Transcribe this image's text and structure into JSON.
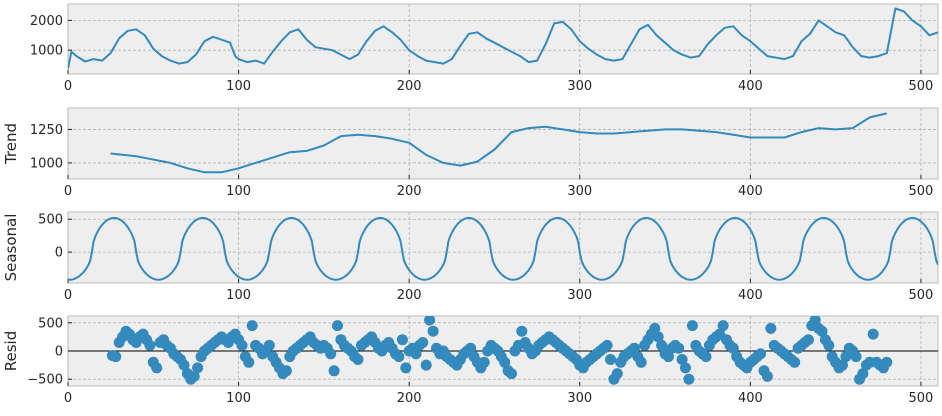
{
  "chart_data": [
    {
      "type": "line",
      "panel": "observed",
      "ylabel": "",
      "xlim": [
        0,
        510
      ],
      "ylim": [
        200,
        2550
      ],
      "xticks": [
        0,
        100,
        200,
        300,
        400,
        500
      ],
      "yticks": [
        1000,
        2000
      ],
      "xtick_labels": [
        "0",
        "100",
        "200",
        "300",
        "400",
        "500"
      ],
      "ytick_labels": [
        "1000",
        "2000"
      ],
      "grid": true,
      "x": [
        0,
        2,
        5,
        10,
        15,
        20,
        25,
        30,
        35,
        40,
        45,
        50,
        55,
        60,
        65,
        70,
        75,
        80,
        85,
        90,
        95,
        98,
        100,
        105,
        110,
        115,
        120,
        125,
        130,
        135,
        140,
        145,
        150,
        155,
        160,
        165,
        170,
        175,
        180,
        185,
        190,
        195,
        200,
        205,
        210,
        215,
        220,
        225,
        230,
        235,
        240,
        245,
        250,
        255,
        260,
        265,
        270,
        275,
        280,
        285,
        290,
        295,
        300,
        305,
        310,
        315,
        320,
        325,
        330,
        335,
        340,
        345,
        350,
        355,
        360,
        365,
        370,
        375,
        380,
        385,
        390,
        395,
        400,
        405,
        410,
        415,
        420,
        425,
        430,
        435,
        440,
        445,
        450,
        455,
        460,
        465,
        470,
        475,
        480,
        485,
        490,
        495,
        500,
        505,
        510
      ],
      "values": [
        380,
        950,
        800,
        620,
        700,
        650,
        900,
        1400,
        1650,
        1700,
        1500,
        1050,
        800,
        650,
        550,
        600,
        850,
        1300,
        1450,
        1350,
        1250,
        800,
        700,
        600,
        650,
        550,
        950,
        1300,
        1600,
        1700,
        1350,
        1100,
        1050,
        1000,
        850,
        700,
        850,
        1300,
        1650,
        1800,
        1600,
        1350,
        1000,
        800,
        650,
        600,
        550,
        700,
        1150,
        1550,
        1600,
        1400,
        1250,
        1100,
        950,
        800,
        600,
        650,
        1200,
        1900,
        1950,
        1700,
        1300,
        1050,
        850,
        700,
        650,
        700,
        1200,
        1700,
        1850,
        1500,
        1250,
        1000,
        850,
        750,
        800,
        1200,
        1500,
        1750,
        1800,
        1500,
        1300,
        1050,
        800,
        750,
        700,
        800,
        1300,
        1550,
        2000,
        1800,
        1600,
        1500,
        1100,
        800,
        750,
        800,
        900,
        2400,
        2300,
        2000,
        1800,
        1500,
        1600
      ]
    },
    {
      "type": "line",
      "panel": "trend",
      "ylabel": "Trend",
      "xlim": [
        0,
        510
      ],
      "ylim": [
        880,
        1410
      ],
      "xticks": [
        0,
        100,
        200,
        300,
        400,
        500
      ],
      "yticks": [
        1000,
        1250
      ],
      "xtick_labels": [
        "0",
        "100",
        "200",
        "300",
        "400",
        "500"
      ],
      "ytick_labels": [
        "1000",
        "1250"
      ],
      "grid": true,
      "x": [
        25,
        40,
        60,
        70,
        80,
        90,
        100,
        110,
        120,
        130,
        140,
        150,
        160,
        170,
        180,
        190,
        200,
        210,
        220,
        230,
        240,
        250,
        260,
        270,
        280,
        290,
        300,
        310,
        320,
        330,
        340,
        350,
        360,
        370,
        380,
        390,
        400,
        410,
        420,
        430,
        440,
        450,
        460,
        470,
        480
      ],
      "values": [
        1070,
        1050,
        1000,
        960,
        930,
        930,
        960,
        1000,
        1040,
        1080,
        1090,
        1130,
        1200,
        1210,
        1200,
        1180,
        1150,
        1060,
        1000,
        980,
        1010,
        1100,
        1230,
        1260,
        1270,
        1250,
        1230,
        1220,
        1220,
        1230,
        1240,
        1250,
        1250,
        1240,
        1230,
        1210,
        1190,
        1190,
        1190,
        1230,
        1260,
        1250,
        1260,
        1340,
        1370
      ]
    },
    {
      "type": "line",
      "panel": "seasonal",
      "ylabel": "Seasonal",
      "xlim": [
        0,
        510
      ],
      "ylim": [
        -470,
        610
      ],
      "xticks": [
        0,
        100,
        200,
        300,
        400,
        500
      ],
      "yticks": [
        0,
        500
      ],
      "xtick_labels": [
        "0",
        "100",
        "200",
        "300",
        "400",
        "500"
      ],
      "ytick_labels": [
        "0",
        "500"
      ],
      "grid": true,
      "period": 52,
      "phase_peak": 27,
      "amplitude_pos": 520,
      "amplitude_neg": 420
    },
    {
      "type": "scatter",
      "panel": "resid",
      "ylabel": "Resid",
      "xlim": [
        0,
        510
      ],
      "ylim": [
        -620,
        620
      ],
      "xticks": [
        0,
        100,
        200,
        300,
        400,
        500
      ],
      "yticks": [
        -500,
        0,
        500
      ],
      "xtick_labels": [
        "0",
        "100",
        "200",
        "300",
        "400",
        "500"
      ],
      "ytick_labels": [
        "−500",
        "0",
        "500"
      ],
      "grid": true,
      "x": [
        26,
        28,
        30,
        32,
        34,
        36,
        38,
        40,
        42,
        44,
        46,
        48,
        50,
        52,
        54,
        56,
        58,
        60,
        62,
        64,
        66,
        68,
        70,
        72,
        74,
        76,
        78,
        80,
        82,
        84,
        86,
        88,
        90,
        92,
        94,
        96,
        98,
        100,
        102,
        104,
        106,
        108,
        110,
        112,
        114,
        116,
        118,
        120,
        122,
        124,
        126,
        128,
        130,
        132,
        134,
        136,
        138,
        140,
        142,
        144,
        146,
        148,
        150,
        152,
        154,
        156,
        158,
        160,
        162,
        164,
        166,
        168,
        170,
        172,
        174,
        176,
        178,
        180,
        182,
        184,
        186,
        188,
        190,
        192,
        194,
        196,
        198,
        200,
        202,
        204,
        206,
        208,
        210,
        212,
        214,
        216,
        218,
        220,
        222,
        224,
        226,
        228,
        230,
        232,
        234,
        236,
        238,
        240,
        242,
        244,
        246,
        248,
        250,
        252,
        254,
        256,
        258,
        260,
        262,
        264,
        266,
        268,
        270,
        272,
        274,
        276,
        278,
        280,
        282,
        284,
        286,
        288,
        290,
        292,
        294,
        296,
        298,
        300,
        302,
        304,
        306,
        308,
        310,
        312,
        314,
        316,
        318,
        320,
        322,
        324,
        326,
        328,
        330,
        332,
        334,
        336,
        338,
        340,
        342,
        344,
        346,
        348,
        350,
        352,
        354,
        356,
        358,
        360,
        362,
        364,
        366,
        368,
        370,
        372,
        374,
        376,
        378,
        380,
        382,
        384,
        386,
        388,
        390,
        392,
        394,
        396,
        398,
        400,
        402,
        404,
        406,
        408,
        410,
        412,
        414,
        416,
        418,
        420,
        422,
        424,
        426,
        428,
        430,
        432,
        434,
        436,
        438,
        440,
        442,
        444,
        446,
        448,
        450,
        452,
        454,
        456,
        458,
        460,
        462,
        464,
        466,
        468,
        470,
        472,
        474,
        476,
        478,
        480
      ],
      "values": [
        -80,
        -100,
        150,
        250,
        350,
        300,
        200,
        150,
        250,
        300,
        200,
        100,
        -200,
        -300,
        150,
        200,
        100,
        50,
        -50,
        -100,
        -150,
        -250,
        -400,
        -500,
        -450,
        -300,
        -100,
        0,
        50,
        100,
        150,
        200,
        250,
        200,
        150,
        250,
        300,
        200,
        100,
        -100,
        -200,
        450,
        100,
        50,
        -50,
        0,
        100,
        -100,
        -200,
        -300,
        -400,
        -350,
        -100,
        0,
        50,
        100,
        150,
        200,
        250,
        150,
        100,
        50,
        100,
        50,
        -50,
        -350,
        450,
        200,
        100,
        50,
        0,
        -100,
        -150,
        100,
        150,
        200,
        250,
        150,
        50,
        0,
        100,
        150,
        50,
        -50,
        -100,
        200,
        -300,
        0,
        50,
        -50,
        100,
        150,
        -250,
        550,
        350,
        50,
        -50,
        0,
        -100,
        -150,
        -200,
        -250,
        -150,
        -50,
        0,
        50,
        -100,
        -200,
        -300,
        -200,
        0,
        100,
        50,
        0,
        -100,
        -200,
        -350,
        -400,
        0,
        100,
        350,
        150,
        50,
        -50,
        0,
        100,
        150,
        200,
        250,
        200,
        150,
        100,
        50,
        0,
        -50,
        -100,
        -150,
        -250,
        -300,
        -200,
        -150,
        -100,
        -50,
        0,
        50,
        100,
        -150,
        -500,
        -400,
        -200,
        -100,
        -50,
        0,
        50,
        -100,
        -200,
        100,
        200,
        300,
        400,
        250,
        100,
        -50,
        -100,
        50,
        100,
        50,
        -150,
        -300,
        -500,
        450,
        100,
        0,
        -50,
        -100,
        100,
        200,
        250,
        300,
        450,
        200,
        100,
        50,
        -100,
        -200,
        -250,
        -300,
        -200,
        -150,
        -100,
        -50,
        -350,
        -450,
        400,
        100,
        50,
        0,
        -50,
        -100,
        -150,
        -200,
        50,
        100,
        150,
        200,
        450,
        550,
        400,
        350,
        200,
        100,
        -100,
        -200,
        -300,
        -250,
        -100,
        50,
        0,
        -100,
        -500,
        -400,
        -250,
        -200,
        300,
        -200,
        -250,
        -300,
        -200
      ]
    }
  ]
}
